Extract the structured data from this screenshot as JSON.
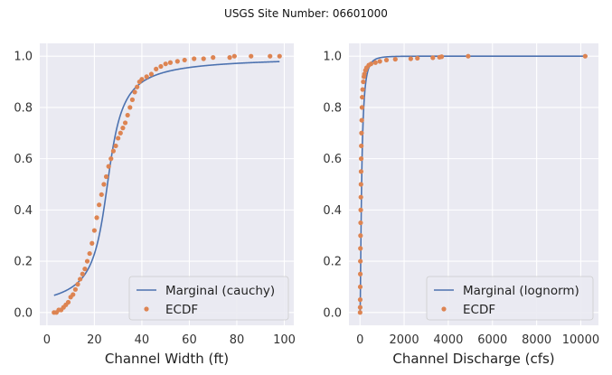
{
  "figure": {
    "suptitle": "USGS Site Number: 06601000"
  },
  "chart_data": [
    {
      "type": "line",
      "xlabel": "Channel Width (ft)",
      "ylabel": "",
      "xlim": [
        -3,
        104
      ],
      "ylim": [
        -0.05,
        1.05
      ],
      "xticks": [
        0,
        20,
        40,
        60,
        80,
        100
      ],
      "yticks": [
        0.0,
        0.2,
        0.4,
        0.6,
        0.8,
        1.0
      ],
      "grid": true,
      "legend_position": "bottom-right",
      "series": [
        {
          "name": "Marginal (cauchy)",
          "style": "line",
          "color": "#4c72b0",
          "dist": "cauchy",
          "loc": 25.5,
          "scale": 4.8,
          "x_range": [
            3,
            98
          ]
        },
        {
          "name": "ECDF",
          "style": "points",
          "color": "#dd8452",
          "x": [
            3,
            4,
            5,
            6,
            7,
            8,
            9,
            10,
            11,
            12,
            13,
            14,
            15,
            16,
            17,
            18,
            19,
            20,
            21,
            22,
            23,
            24,
            25,
            26,
            27,
            28,
            29,
            30,
            31,
            32,
            33,
            34,
            35,
            36,
            37,
            38,
            39,
            40,
            42,
            44,
            46,
            48,
            50,
            52,
            55,
            58,
            62,
            66,
            70,
            77,
            79,
            86,
            94,
            98
          ],
          "y": [
            0.0,
            0.0,
            0.01,
            0.01,
            0.02,
            0.03,
            0.04,
            0.06,
            0.07,
            0.09,
            0.11,
            0.13,
            0.15,
            0.17,
            0.2,
            0.23,
            0.27,
            0.32,
            0.37,
            0.42,
            0.46,
            0.5,
            0.53,
            0.57,
            0.6,
            0.63,
            0.65,
            0.68,
            0.7,
            0.72,
            0.74,
            0.77,
            0.8,
            0.83,
            0.86,
            0.88,
            0.9,
            0.91,
            0.92,
            0.93,
            0.95,
            0.96,
            0.97,
            0.975,
            0.98,
            0.985,
            0.99,
            0.99,
            0.995,
            0.995,
            1.0,
            1.0,
            1.0,
            1.0
          ]
        }
      ]
    },
    {
      "type": "line",
      "xlabel": "Channel Discharge (cfs)",
      "ylabel": "",
      "xlim": [
        -500,
        10800
      ],
      "ylim": [
        -0.05,
        1.05
      ],
      "xticks": [
        0,
        2000,
        4000,
        6000,
        8000,
        10000
      ],
      "yticks": [
        0.0,
        0.2,
        0.4,
        0.6,
        0.8,
        1.0
      ],
      "grid": true,
      "legend_position": "bottom-right",
      "series": [
        {
          "name": "Marginal (lognorm)",
          "style": "line",
          "color": "#4c72b0",
          "dist": "lognorm",
          "mu": 4.3,
          "sigma": 1.0,
          "x_range": [
            0,
            10300
          ]
        },
        {
          "name": "ECDF",
          "style": "points",
          "color": "#dd8452",
          "x": [
            5,
            8,
            10,
            12,
            15,
            18,
            20,
            25,
            30,
            35,
            40,
            45,
            50,
            55,
            60,
            70,
            80,
            90,
            100,
            120,
            150,
            180,
            200,
            250,
            300,
            400,
            500,
            700,
            900,
            1200,
            1600,
            2300,
            2600,
            3300,
            3600,
            3700,
            4900,
            10200
          ],
          "y": [
            0.0,
            0.02,
            0.05,
            0.1,
            0.15,
            0.2,
            0.25,
            0.3,
            0.35,
            0.4,
            0.45,
            0.5,
            0.55,
            0.6,
            0.65,
            0.7,
            0.75,
            0.8,
            0.84,
            0.87,
            0.9,
            0.92,
            0.93,
            0.945,
            0.955,
            0.965,
            0.97,
            0.975,
            0.98,
            0.985,
            0.988,
            0.99,
            0.992,
            0.994,
            0.996,
            0.998,
            1.0,
            1.0
          ]
        }
      ]
    }
  ]
}
